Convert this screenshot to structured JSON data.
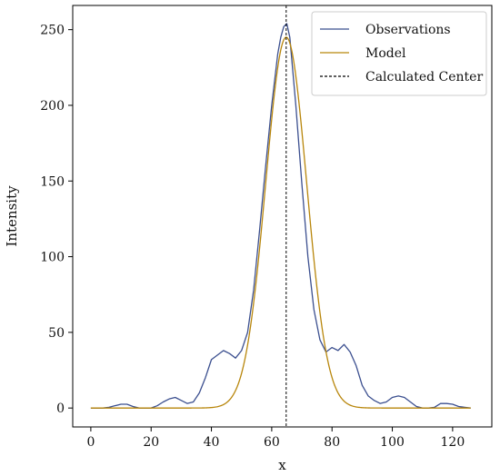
{
  "chart_data": {
    "type": "line",
    "title": "",
    "xlabel": "x",
    "ylabel": "Intensity",
    "xlim": [
      -6,
      133
    ],
    "ylim": [
      -12.5,
      266
    ],
    "xticks": [
      0,
      20,
      40,
      60,
      80,
      100,
      120
    ],
    "yticks": [
      0,
      50,
      100,
      150,
      200,
      250
    ],
    "grid": false,
    "legend_position": "top-right",
    "center_line": {
      "label": "Calculated Center",
      "x": 64.8,
      "color": "#000000",
      "style": "dashed"
    },
    "series": [
      {
        "name": "Observations",
        "color": "#3b4f8f",
        "x": [
          0,
          2,
          4,
          6,
          8,
          10,
          12,
          14,
          16,
          18,
          20,
          22,
          24,
          26,
          28,
          30,
          32,
          34,
          36,
          38,
          40,
          42,
          44,
          46,
          48,
          50,
          52,
          54,
          56,
          58,
          60,
          62,
          63,
          64,
          65,
          66,
          68,
          70,
          72,
          74,
          76,
          78,
          80,
          82,
          84,
          86,
          88,
          90,
          92,
          94,
          96,
          98,
          100,
          102,
          104,
          106,
          108,
          110,
          112,
          114,
          116,
          118,
          120,
          122,
          124,
          126
        ],
        "values": [
          0,
          0,
          0,
          0.5,
          1.5,
          2.5,
          2.5,
          1,
          0,
          0,
          0,
          1.5,
          4,
          6,
          7,
          5,
          3,
          4,
          10,
          20,
          32,
          35,
          38,
          36,
          33,
          38,
          50,
          78,
          118,
          160,
          200,
          234,
          245,
          252,
          254,
          245,
          200,
          148,
          100,
          65,
          45,
          37,
          40,
          38,
          42,
          37,
          28,
          15,
          8,
          5,
          3,
          4,
          7,
          8,
          7,
          4,
          1,
          0,
          0,
          0.5,
          3,
          3,
          2.5,
          1,
          0.5,
          0
        ]
      },
      {
        "name": "Model",
        "color": "#b8860b",
        "type": "gaussian",
        "amplitude": 245,
        "center": 64.8,
        "sigma": 6.8,
        "x_start": 0,
        "x_end": 126
      }
    ]
  }
}
